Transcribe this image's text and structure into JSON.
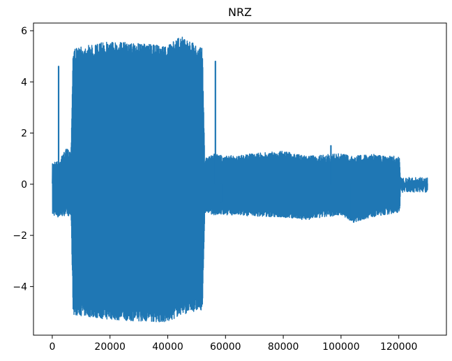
{
  "chart_data": {
    "type": "line",
    "title": "NRZ",
    "xlabel": "",
    "ylabel": "",
    "xlim": [
      -6500,
      136500
    ],
    "ylim": [
      -5.9,
      6.3
    ],
    "xticks": [
      0,
      20000,
      40000,
      60000,
      80000,
      100000,
      120000
    ],
    "xtick_labels": [
      "0",
      "20000",
      "40000",
      "60000",
      "80000",
      "100000",
      "120000"
    ],
    "yticks": [
      -4,
      -2,
      0,
      2,
      4,
      6
    ],
    "ytick_labels": [
      "−4",
      "−2",
      "0",
      "2",
      "4",
      "6"
    ],
    "grid": false,
    "legend": "none",
    "line_color": "#1f77b4",
    "series": [
      {
        "style": "dense oscillating signal drawn as min/max envelope",
        "x": [
          0,
          2000,
          5000,
          6500,
          7200,
          20000,
          40000,
          44500,
          52000,
          52800,
          56000,
          60000,
          80000,
          88000,
          100000,
          104000,
          110000,
          115000,
          120300,
          120600,
          130000
        ],
        "max": [
          0.9,
          0.9,
          1.4,
          1.3,
          5.3,
          5.6,
          5.4,
          5.8,
          5.3,
          1.0,
          1.2,
          1.1,
          1.3,
          1.1,
          1.2,
          1.1,
          1.2,
          1.1,
          1.1,
          0.03,
          0.03
        ],
        "min": [
          -1.2,
          -1.3,
          -1.2,
          -1.3,
          -5.1,
          -5.3,
          -5.4,
          -5.1,
          -4.9,
          -1.1,
          -1.2,
          -1.2,
          -1.3,
          -1.4,
          -1.2,
          -1.5,
          -1.3,
          -1.2,
          -1.1,
          -0.03,
          -0.03
        ],
        "spikes": [
          {
            "x": 2200,
            "y": 4.6
          },
          {
            "x": 56500,
            "y": 4.8
          },
          {
            "x": 58500,
            "y": -0.7
          },
          {
            "x": 96500,
            "y": 1.5
          },
          {
            "x": 103500,
            "y": -1.4
          }
        ]
      }
    ]
  }
}
